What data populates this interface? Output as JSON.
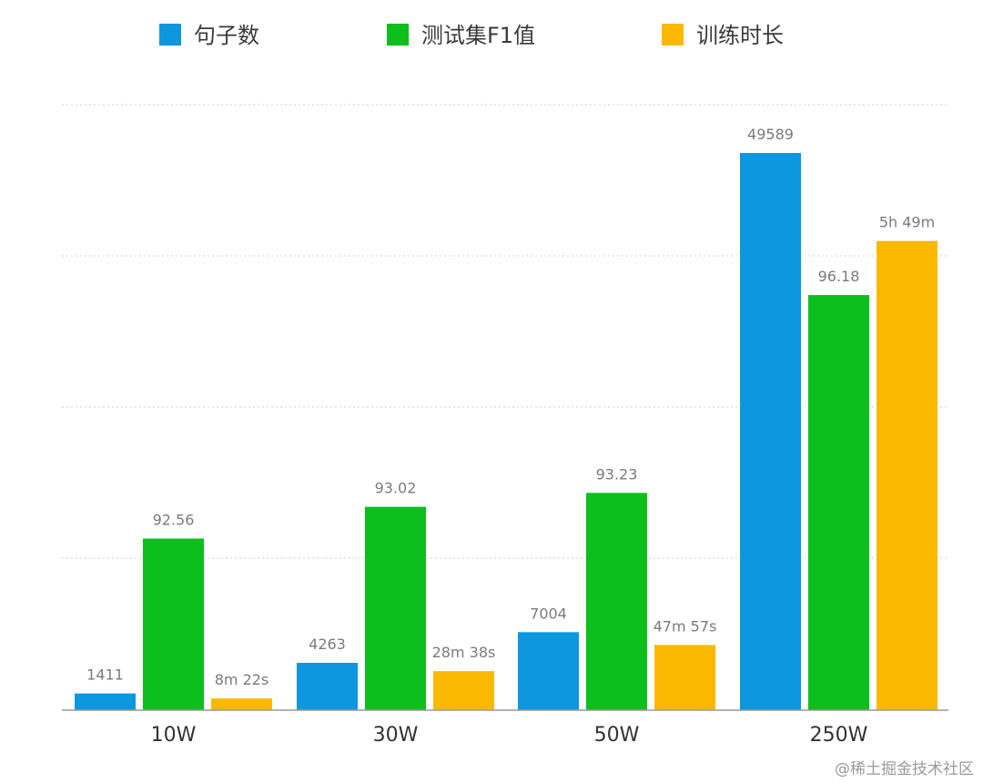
{
  "chart_data": {
    "type": "bar",
    "categories": [
      "10W",
      "30W",
      "50W",
      "250W"
    ],
    "legend_position": "top",
    "grid": true,
    "series": [
      {
        "name": "句子数",
        "color": "#0d97df",
        "values": [
          1411,
          4263,
          7004,
          49589
        ],
        "labels": [
          "1411",
          "4263",
          "7004",
          "49589"
        ],
        "relative_height": [
          0.03,
          0.085,
          0.14,
          1.0
        ]
      },
      {
        "name": "测试集F1值",
        "color": "#0cbf1c",
        "values": [
          92.56,
          93.02,
          93.23,
          96.18
        ],
        "labels": [
          "92.56",
          "93.02",
          "93.23",
          "96.18"
        ],
        "relative_height": [
          0.308,
          0.365,
          0.39,
          0.745
        ]
      },
      {
        "name": "训练时长",
        "color": "#fbb800",
        "values_seconds": [
          502,
          1718,
          2877,
          20940
        ],
        "labels": [
          "8m 22s",
          "28m 38s",
          "47m 57s",
          "5h 49m"
        ],
        "relative_height": [
          0.021,
          0.07,
          0.117,
          0.842
        ]
      }
    ]
  },
  "watermark": "@稀土掘金技术社区"
}
